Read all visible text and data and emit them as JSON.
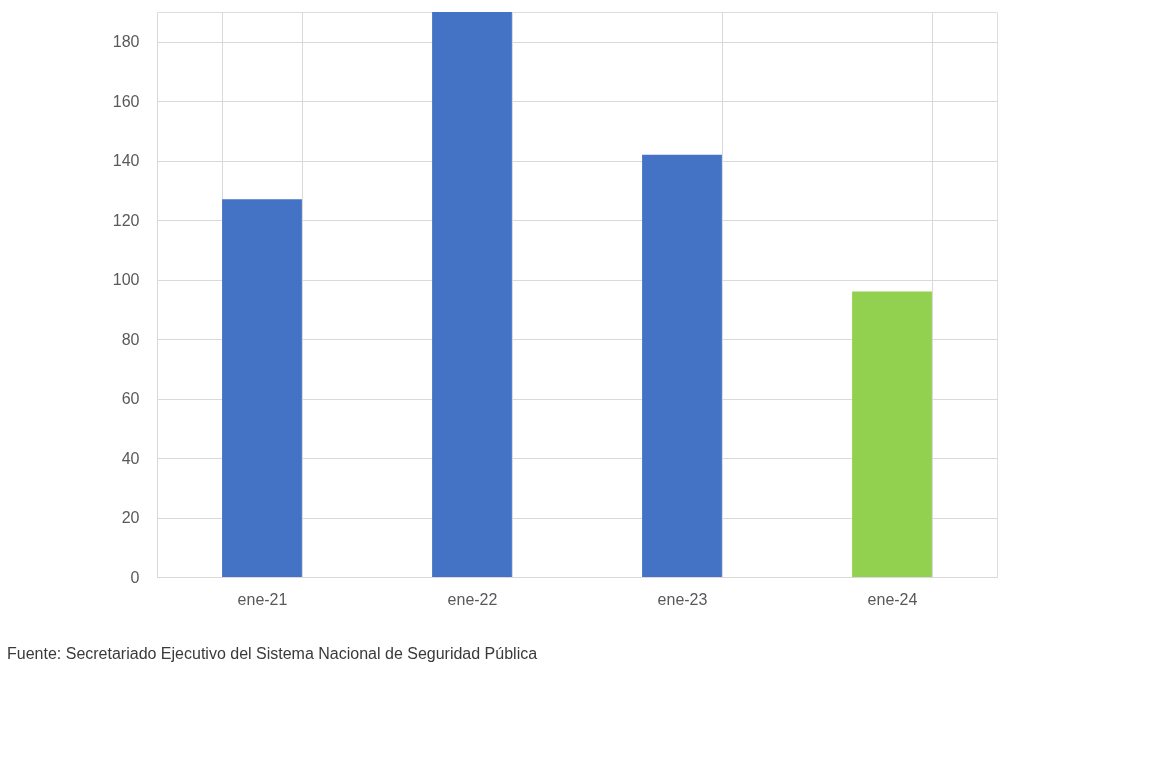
{
  "chart_data": {
    "type": "bar",
    "categories": [
      "ene-21",
      "ene-22",
      "ene-23",
      "ene-24"
    ],
    "values": [
      127,
      190,
      142,
      96
    ],
    "colors": [
      "#4472c4",
      "#4472c4",
      "#4472c4",
      "#92d050"
    ],
    "ylim": [
      0,
      190
    ],
    "yticks": [
      0,
      20,
      40,
      60,
      80,
      100,
      120,
      140,
      160,
      180
    ],
    "grid": true,
    "annotations": [
      "Fuente: Secretariado Ejecutivo del Sistema Nacional de Seguridad Pública"
    ]
  }
}
